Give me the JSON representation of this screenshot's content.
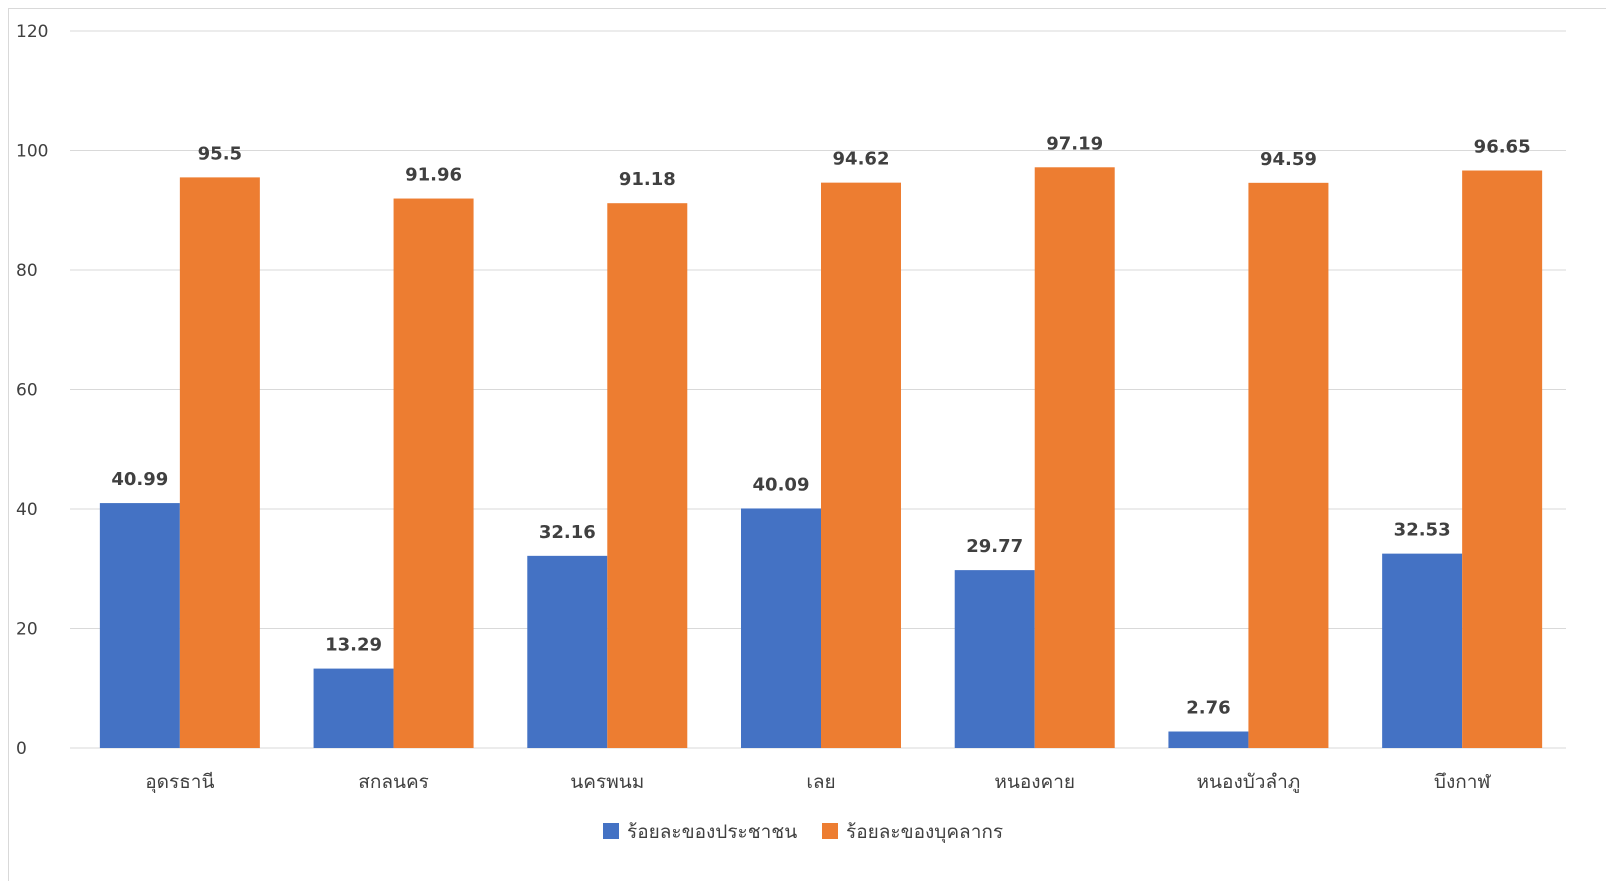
{
  "chart_data": {
    "type": "bar",
    "title": "",
    "xlabel": "",
    "ylabel": "",
    "ylim": [
      0,
      120
    ],
    "yticks": [
      0,
      20,
      40,
      60,
      80,
      100,
      120
    ],
    "grid": true,
    "legend_position": "bottom",
    "categories": [
      "อุดรธานี",
      "สกลนคร",
      "นครพนม",
      "เลย",
      "หนองคาย",
      "หนองบัวลำภู",
      "บึงกาฬ"
    ],
    "series": [
      {
        "name": "ร้อยละของประชาชน",
        "color": "#4472C4",
        "values": [
          40.99,
          13.29,
          32.16,
          40.09,
          29.77,
          2.76,
          32.53
        ]
      },
      {
        "name": "ร้อยละของบุคลากร",
        "color": "#ED7D31",
        "values": [
          95.5,
          91.96,
          91.18,
          94.62,
          97.19,
          94.59,
          96.65
        ]
      }
    ],
    "data_labels": [
      [
        "40.99",
        "13.29",
        "32.16",
        "40.09",
        "29.77",
        "2.76",
        "32.53"
      ],
      [
        "95.5",
        "91.96",
        "91.18",
        "94.62",
        "97.19",
        "94.59",
        "96.65"
      ]
    ]
  }
}
